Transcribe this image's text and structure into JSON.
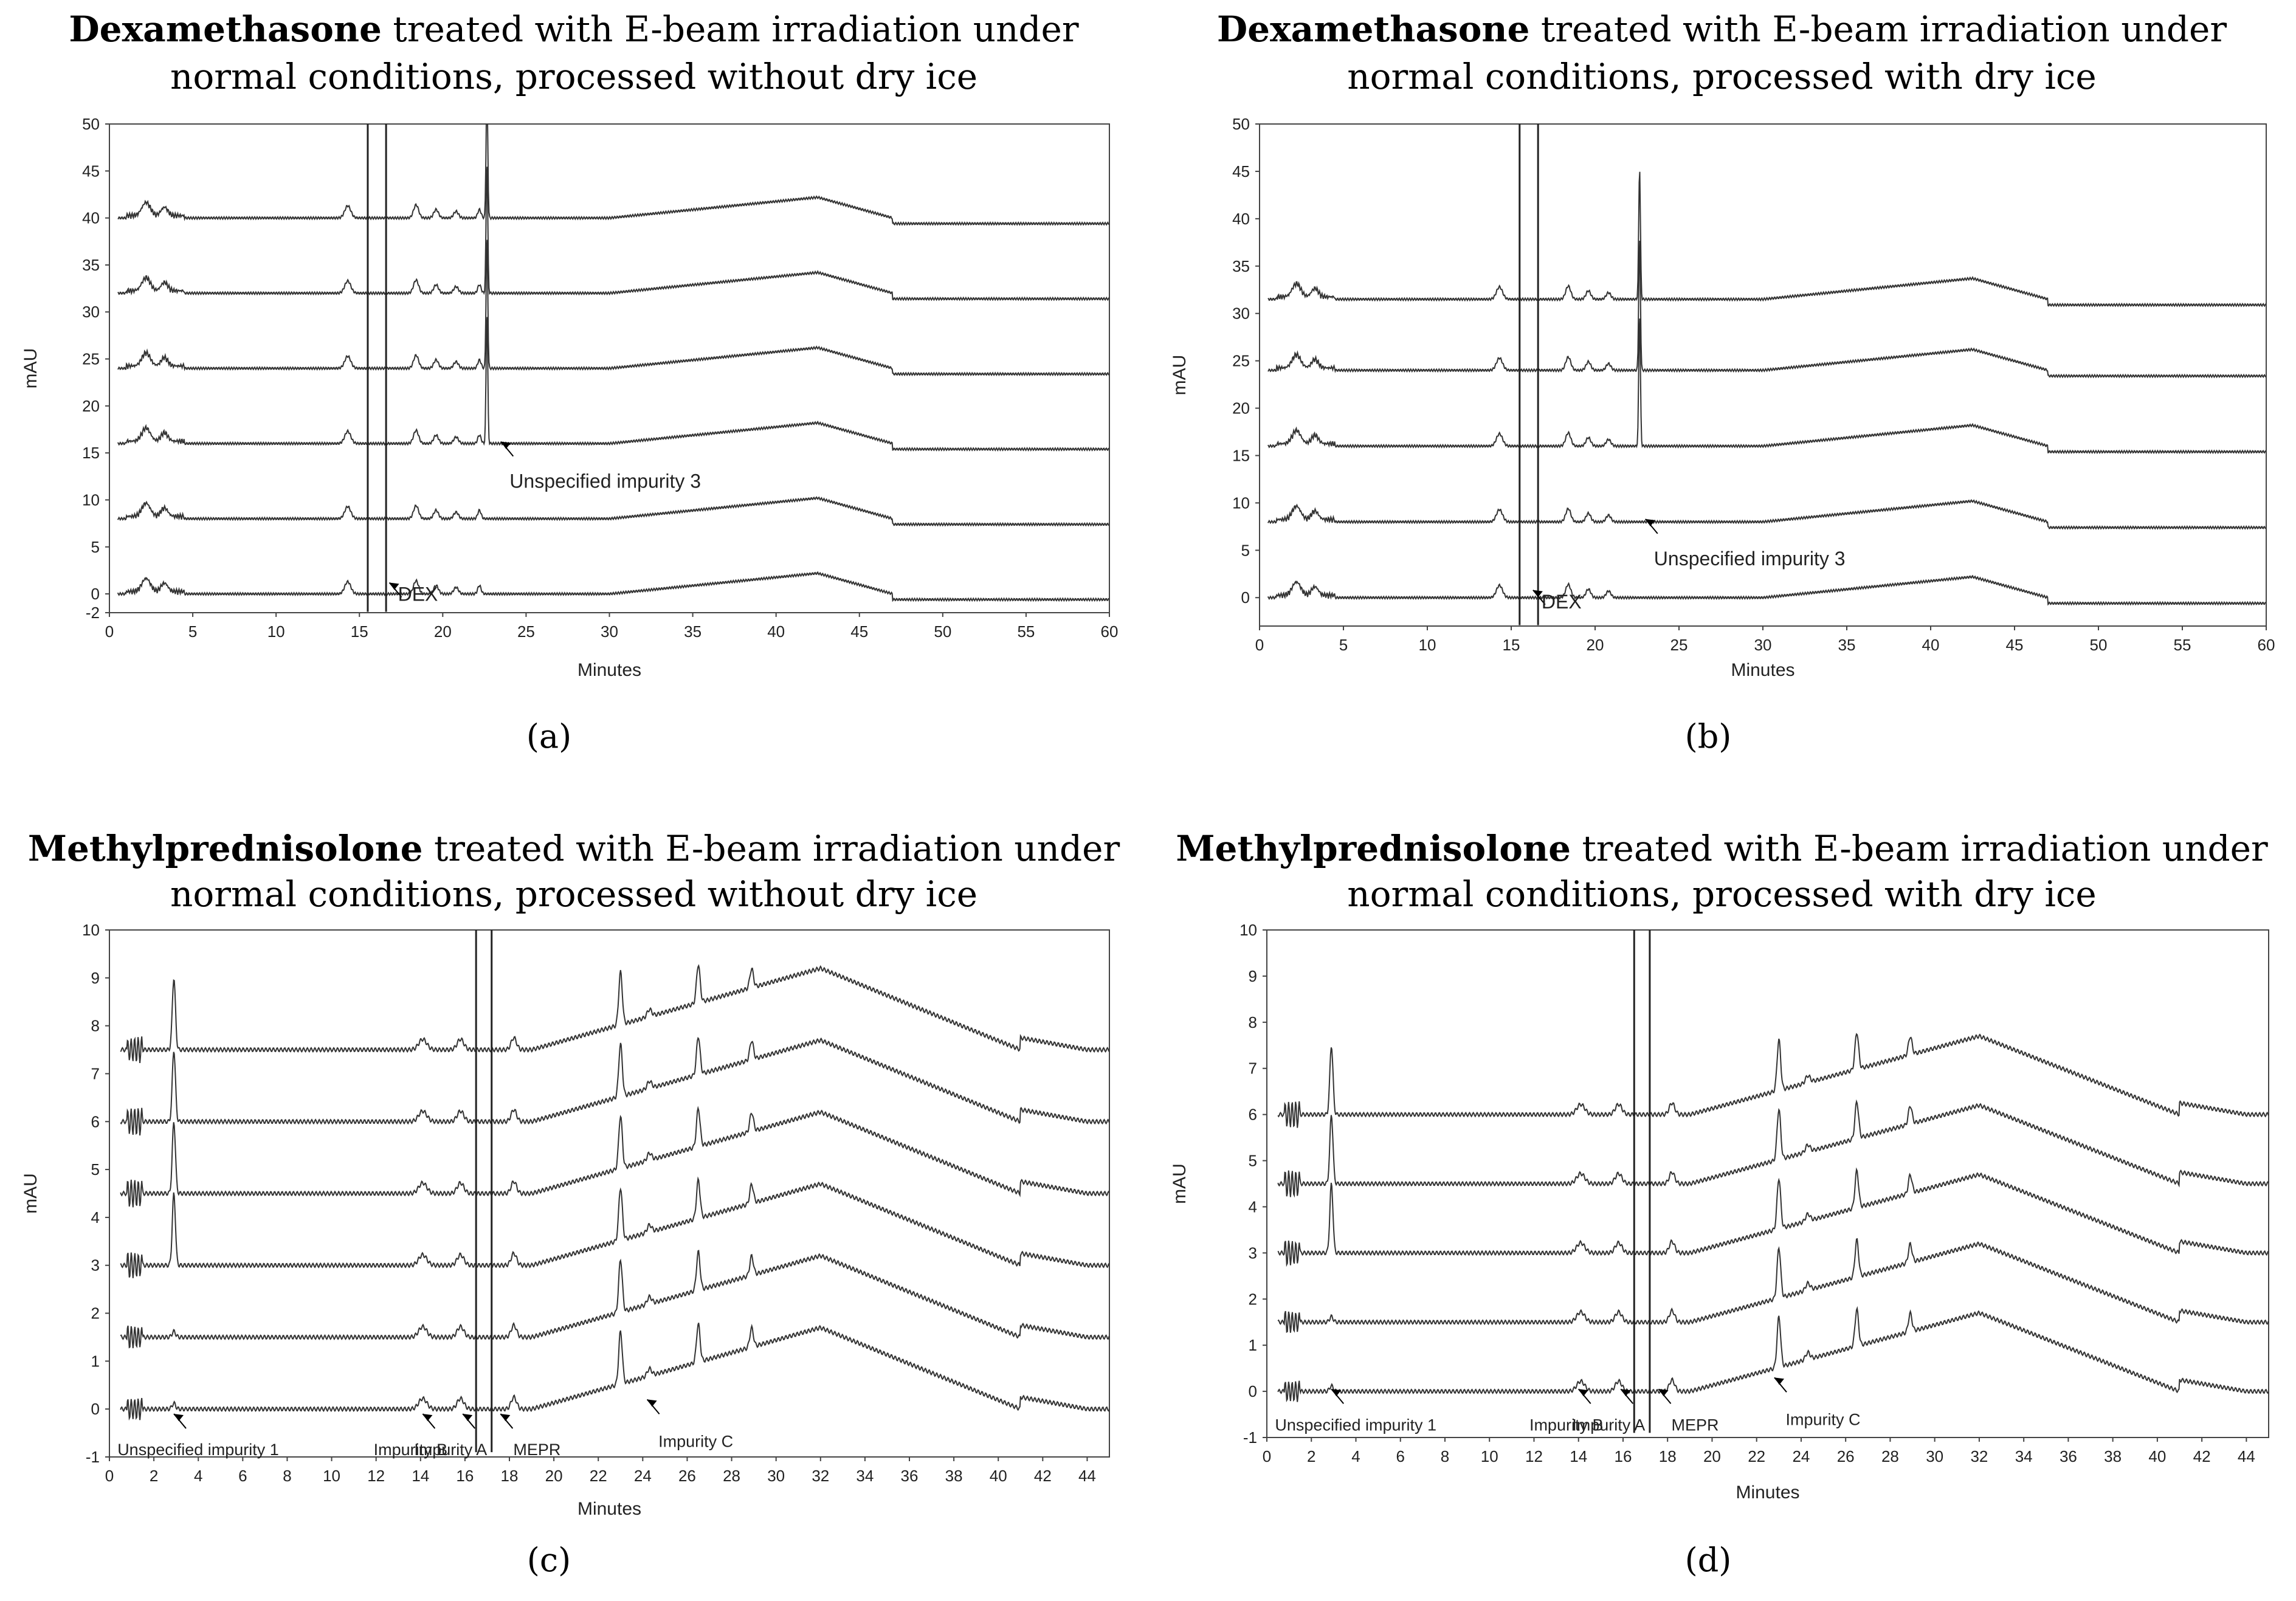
{
  "chart_data": [
    {
      "type": "line",
      "panel_label": "(a)",
      "title_bold": "Dexamethasone",
      "title_rest_1": "treated with E-beam irradiation under",
      "title_line2": "normal conditions, processed without dry ice",
      "xlabel": "Minutes",
      "ylabel": "mAU",
      "xlim": [
        0,
        60
      ],
      "ylim": [
        -2,
        50
      ],
      "xticks": [
        "0",
        "5",
        "10",
        "15",
        "20",
        "25",
        "30",
        "35",
        "40",
        "45",
        "50",
        "55",
        "60"
      ],
      "yticks": [
        "-2",
        "0",
        "5",
        "10",
        "15",
        "20",
        "25",
        "30",
        "35",
        "40",
        "45",
        "50"
      ],
      "series_offsets": [
        0,
        8,
        16,
        24,
        32,
        40
      ],
      "annotations": [
        {
          "text": "DEX",
          "x": 16.8,
          "y": 1.2
        },
        {
          "text": "Unspecified impurity 3",
          "x": 23.5,
          "y": 16.2
        }
      ]
    },
    {
      "type": "line",
      "panel_label": "(b)",
      "title_bold": "Dexamethasone",
      "title_rest_1": "treated with E-beam irradiation under",
      "title_line2": "normal conditions, processed with dry ice",
      "xlabel": "Minutes",
      "ylabel": "mAU",
      "xlim": [
        0,
        60
      ],
      "ylim": [
        -3,
        50
      ],
      "xticks": [
        "0",
        "5",
        "10",
        "15",
        "20",
        "25",
        "30",
        "35",
        "40",
        "45",
        "50",
        "55",
        "60"
      ],
      "yticks": [
        "0",
        "5",
        "10",
        "15",
        "20",
        "25",
        "30",
        "35",
        "40",
        "45",
        "50"
      ],
      "series_offsets": [
        0,
        8,
        16,
        24,
        31.5
      ],
      "annotations": [
        {
          "text": "DEX",
          "x": 16.3,
          "y": 0.8
        },
        {
          "text": "Unspecified impurity 3",
          "x": 23.0,
          "y": 8.3
        }
      ]
    },
    {
      "type": "line",
      "panel_label": "(c)",
      "title_bold": "Methylprednisolone",
      "title_rest_1": "treated with E-beam irradiation under",
      "title_line2": "normal conditions, processed without dry ice",
      "xlabel": "Minutes",
      "ylabel": "mAU",
      "xlim": [
        0,
        45
      ],
      "ylim": [
        -1,
        10
      ],
      "xticks": [
        "0",
        "2",
        "4",
        "6",
        "8",
        "10",
        "12",
        "14",
        "16",
        "18",
        "20",
        "22",
        "24",
        "26",
        "28",
        "30",
        "32",
        "34",
        "36",
        "38",
        "40",
        "42",
        "44"
      ],
      "yticks": [
        "-1",
        "0",
        "1",
        "2",
        "3",
        "4",
        "5",
        "6",
        "7",
        "8",
        "9",
        "10"
      ],
      "series_offsets": [
        0,
        1.5,
        3.0,
        4.5,
        6.0,
        7.5
      ],
      "annotations": [
        {
          "text": "Unspecified impurity 1",
          "x": 2.9,
          "y": -0.1
        },
        {
          "text": "Impurity B",
          "x": 14.1,
          "y": -0.1
        },
        {
          "text": "Impurity A",
          "x": 15.9,
          "y": -0.1
        },
        {
          "text": "MEPR",
          "x": 17.6,
          "y": -0.1
        },
        {
          "text": "Impurity C",
          "x": 24.2,
          "y": 0.2
        }
      ]
    },
    {
      "type": "line",
      "panel_label": "(d)",
      "title_bold": "Methylprednisolone",
      "title_rest_1": "treated with E-beam irradiation under",
      "title_line2": "normal conditions, processed with dry ice",
      "xlabel": "Minutes",
      "ylabel": "mAU",
      "xlim": [
        0,
        45
      ],
      "ylim": [
        -1,
        10
      ],
      "xticks": [
        "0",
        "2",
        "4",
        "6",
        "8",
        "10",
        "12",
        "14",
        "16",
        "18",
        "20",
        "22",
        "24",
        "26",
        "28",
        "30",
        "32",
        "34",
        "36",
        "38",
        "40",
        "42",
        "44"
      ],
      "yticks": [
        "-1",
        "0",
        "1",
        "2",
        "3",
        "4",
        "5",
        "6",
        "7",
        "8",
        "9",
        "10"
      ],
      "series_offsets": [
        0,
        1.5,
        3.0,
        4.5,
        6.0
      ],
      "annotations": [
        {
          "text": "Unspecified impurity 1",
          "x": 2.9,
          "y": 0.05
        },
        {
          "text": "Impurity B",
          "x": 14.0,
          "y": 0.05
        },
        {
          "text": "Impurity A",
          "x": 15.9,
          "y": 0.05
        },
        {
          "text": "MEPR",
          "x": 17.6,
          "y": 0.05
        },
        {
          "text": "Impurity C",
          "x": 22.8,
          "y": 0.3
        }
      ]
    }
  ]
}
